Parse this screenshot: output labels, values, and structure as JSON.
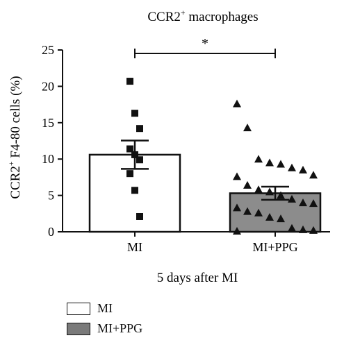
{
  "chart_data": {
    "type": "bar",
    "title": "CCR2",
    "title_sup": "+",
    "title_rest": " macrophages",
    "ylabel": "CCR2",
    "ylabel_sup": "+",
    "ylabel_rest": " F4-80 cells (%)",
    "xlabel": "5 days after MI",
    "ylim": [
      0,
      25
    ],
    "yticks": [
      "0",
      "5",
      "10",
      "15",
      "20",
      "25"
    ],
    "categories": [
      "MI",
      "MI+PPG"
    ],
    "means": [
      10.6,
      5.3
    ],
    "errors": [
      1.95,
      0.9
    ],
    "bar_colors": [
      "#ffffff",
      "#8c8c8c"
    ],
    "significance": "*",
    "points": [
      {
        "marker": "square",
        "values": [
          20.7,
          16.3,
          14.2,
          11.4,
          10.6,
          9.9,
          8.0,
          5.7,
          2.1
        ]
      },
      {
        "marker": "triangle",
        "values": [
          17.6,
          14.3,
          10.0,
          9.5,
          9.3,
          8.8,
          8.5,
          7.8,
          7.6,
          6.4,
          5.8,
          5.5,
          5.0,
          4.5,
          4.0,
          3.9,
          3.3,
          2.8,
          2.6,
          2.0,
          1.8,
          0.5,
          0.3,
          0.2,
          0.1
        ]
      }
    ]
  },
  "legend": {
    "items": [
      {
        "label": "MI",
        "color": "#ffffff"
      },
      {
        "label": "MI+PPG",
        "color": "#7a7a7a"
      }
    ]
  }
}
